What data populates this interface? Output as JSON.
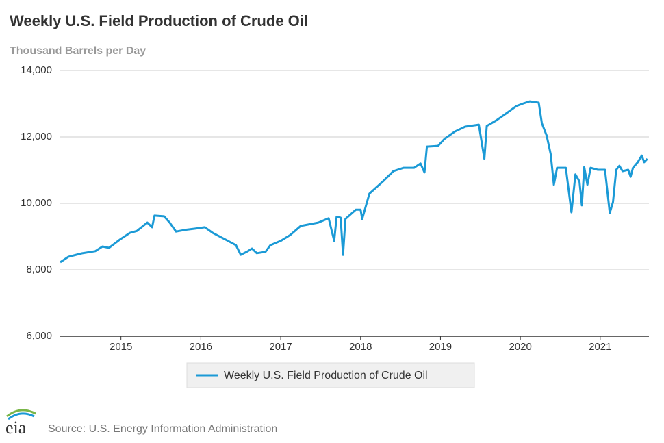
{
  "chart_data": {
    "type": "line",
    "title": "Weekly U.S. Field Production of Crude Oil",
    "subtitle": "Thousand Barrels per Day",
    "source": "Source: U.S. Energy Information Administration",
    "logo_text": "eia",
    "x": [
      2014.24,
      2014.34,
      2014.51,
      2014.68,
      2014.77,
      2014.85,
      2014.98,
      2015.11,
      2015.2,
      2015.33,
      2015.39,
      2015.42,
      2015.54,
      2015.61,
      2015.69,
      2015.8,
      2015.93,
      2016.05,
      2016.15,
      2016.31,
      2016.44,
      2016.5,
      2016.59,
      2016.64,
      2016.7,
      2016.81,
      2016.87,
      2017.0,
      2017.12,
      2017.25,
      2017.47,
      2017.6,
      2017.67,
      2017.7,
      2017.75,
      2017.78,
      2017.81,
      2017.94,
      2018.0,
      2018.02,
      2018.11,
      2018.28,
      2018.41,
      2018.54,
      2018.67,
      2018.75,
      2018.8,
      2018.83,
      2018.97,
      2019.05,
      2019.18,
      2019.31,
      2019.48,
      2019.55,
      2019.58,
      2019.7,
      2019.83,
      2019.95,
      2020.04,
      2020.12,
      2020.23,
      2020.27,
      2020.33,
      2020.38,
      2020.42,
      2020.46,
      2020.57,
      2020.64,
      2020.69,
      2020.74,
      2020.77,
      2020.8,
      2020.84,
      2020.88,
      2020.97,
      2021.06,
      2021.12,
      2021.16,
      2021.2,
      2021.24,
      2021.28,
      2021.35,
      2021.38,
      2021.41,
      2021.47,
      2021.52,
      2021.55,
      2021.59
    ],
    "series": [
      {
        "name": "Weekly U.S. Field Production of Crude Oil",
        "color": "#1b9ad6",
        "values": [
          8227,
          8390,
          8495,
          8560,
          8700,
          8660,
          8900,
          9110,
          9170,
          9420,
          9280,
          9630,
          9610,
          9420,
          9150,
          9200,
          9240,
          9280,
          9110,
          8910,
          8740,
          8450,
          8560,
          8640,
          8500,
          8540,
          8740,
          8870,
          9050,
          9320,
          9420,
          9550,
          8870,
          9590,
          9570,
          8450,
          9530,
          9810,
          9810,
          9530,
          10290,
          10660,
          10970,
          11070,
          11070,
          11200,
          10930,
          11710,
          11730,
          11940,
          12160,
          12310,
          12370,
          11340,
          12330,
          12500,
          12720,
          12930,
          13010,
          13070,
          13030,
          12410,
          12040,
          11480,
          10560,
          11070,
          11070,
          9730,
          10870,
          10660,
          9940,
          11090,
          10560,
          11070,
          11010,
          11010,
          9710,
          10040,
          11010,
          11130,
          10970,
          11010,
          10800,
          11070,
          11240,
          11440,
          11240,
          11340
        ]
      }
    ],
    "xlim": [
      2014.24,
      2021.61
    ],
    "xticks": [
      2015,
      2016,
      2017,
      2018,
      2019,
      2020,
      2021
    ],
    "ylim": [
      6000,
      14000
    ],
    "yticks": [
      {
        "value": 6000,
        "label": "6,000"
      },
      {
        "value": 8000,
        "label": "8,000"
      },
      {
        "value": 10000,
        "label": "10,000"
      },
      {
        "value": 12000,
        "label": "12,000"
      },
      {
        "value": 14000,
        "label": "14,000"
      }
    ],
    "grid": true,
    "legend": "bottom"
  }
}
